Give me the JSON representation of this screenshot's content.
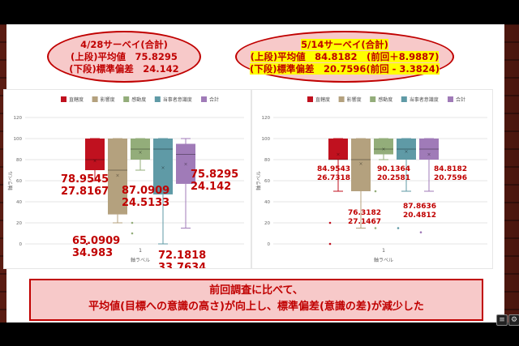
{
  "ellipse_left": {
    "line1": "4/28サーベイ(合計)",
    "line2": "(上段)平均値　75.8295",
    "line3": "(下段)標準偏差　24.142"
  },
  "ellipse_right": {
    "line1": "5/14サーベイ(合計)",
    "line2": "(上段)平均値　84.8182　(前回＋8.9887)",
    "line3": "(下段)標準偏差　20.7596(前回 - 3.3824)"
  },
  "bottom_box": {
    "line1": "前回調査に比べて、",
    "line2": "平均値(目標への意識の高さ)が向上し、標準偏差(意識の差)が減少した"
  },
  "colors": {
    "red": "#c0111f",
    "khaki": "#b4a17e",
    "green": "#93ad7a",
    "teal": "#5f9aa6",
    "purple": "#a07bb8",
    "accent": "#c00000"
  },
  "chart_data": [
    {
      "type": "boxplot",
      "ylabel": "軸ラベル",
      "xlabel": "軸ラベル",
      "ylim": [
        0,
        120
      ],
      "yticks": [
        "0",
        "20",
        "40",
        "60",
        "80",
        "100",
        "120"
      ],
      "categories": [
        "1"
      ],
      "legend_position": "top",
      "series": [
        {
          "name": "直轄度",
          "color": "#c0111f",
          "whisker_low": 60,
          "q1": 70,
          "median": 80,
          "q3": 100,
          "whisker_high": 100,
          "mean": 78.9545,
          "outliers": [
            0
          ]
        },
        {
          "name": "影響度",
          "color": "#b4a17e",
          "whisker_low": 20,
          "q1": 28,
          "median": 70,
          "q3": 100,
          "whisker_high": 100,
          "mean": 65.0909,
          "outliers": []
        },
        {
          "name": "感動度",
          "color": "#93ad7a",
          "whisker_low": 70,
          "q1": 80,
          "median": 90,
          "q3": 100,
          "whisker_high": 100,
          "mean": 87.0909,
          "outliers": [
            20,
            10
          ]
        },
        {
          "name": "当事者意識度",
          "color": "#5f9aa6",
          "whisker_low": 0,
          "q1": 47,
          "median": 90,
          "q3": 100,
          "whisker_high": 100,
          "mean": 72.1818,
          "outliers": []
        },
        {
          "name": "合計",
          "color": "#a07bb8",
          "whisker_low": 15,
          "q1": 57,
          "median": 85,
          "q3": 95,
          "whisker_high": 100,
          "mean": 75.8295,
          "outliers": []
        }
      ],
      "annotations": [
        {
          "mean": "78.9545",
          "sd": "27.8167"
        },
        {
          "mean": "65.0909",
          "sd": "34.983"
        },
        {
          "mean": "87.0909",
          "sd": "24.5133"
        },
        {
          "mean": "72.1818",
          "sd": "33.7634"
        },
        {
          "mean": "75.8295",
          "sd": "24.142"
        }
      ]
    },
    {
      "type": "boxplot",
      "ylabel": "軸ラベル",
      "xlabel": "軸ラベル",
      "ylim": [
        0,
        120
      ],
      "yticks": [
        "0",
        "20",
        "40",
        "60",
        "80",
        "100",
        "120"
      ],
      "categories": [
        "1"
      ],
      "legend_position": "top",
      "series": [
        {
          "name": "直轄度",
          "color": "#c0111f",
          "whisker_low": 50,
          "q1": 80,
          "median": 80,
          "q3": 100,
          "whisker_high": 100,
          "mean": 84.9543,
          "outliers": [
            20,
            0
          ]
        },
        {
          "name": "影響度",
          "color": "#b4a17e",
          "whisker_low": 15,
          "q1": 50,
          "median": 80,
          "q3": 100,
          "whisker_high": 100,
          "mean": 76.3182,
          "outliers": []
        },
        {
          "name": "感動度",
          "color": "#93ad7a",
          "whisker_low": 80,
          "q1": 85,
          "median": 90,
          "q3": 100,
          "whisker_high": 100,
          "mean": 90.1364,
          "outliers": [
            50,
            15
          ]
        },
        {
          "name": "当事者意識度",
          "color": "#5f9aa6",
          "whisker_low": 50,
          "q1": 80,
          "median": 90,
          "q3": 100,
          "whisker_high": 100,
          "mean": 87.8636,
          "outliers": [
            15
          ]
        },
        {
          "name": "合計",
          "color": "#a07bb8",
          "whisker_low": 50,
          "q1": 80,
          "median": 90,
          "q3": 100,
          "whisker_high": 100,
          "mean": 84.8182,
          "outliers": [
            11
          ]
        }
      ],
      "annotations": [
        {
          "mean": "84.9543",
          "sd": "26.7318"
        },
        {
          "mean": "76.3182",
          "sd": "27.1467"
        },
        {
          "mean": "90.1364",
          "sd": "20.2581"
        },
        {
          "mean": "87.8636",
          "sd": "20.4812"
        },
        {
          "mean": "84.8182",
          "sd": "20.7596"
        }
      ]
    }
  ]
}
